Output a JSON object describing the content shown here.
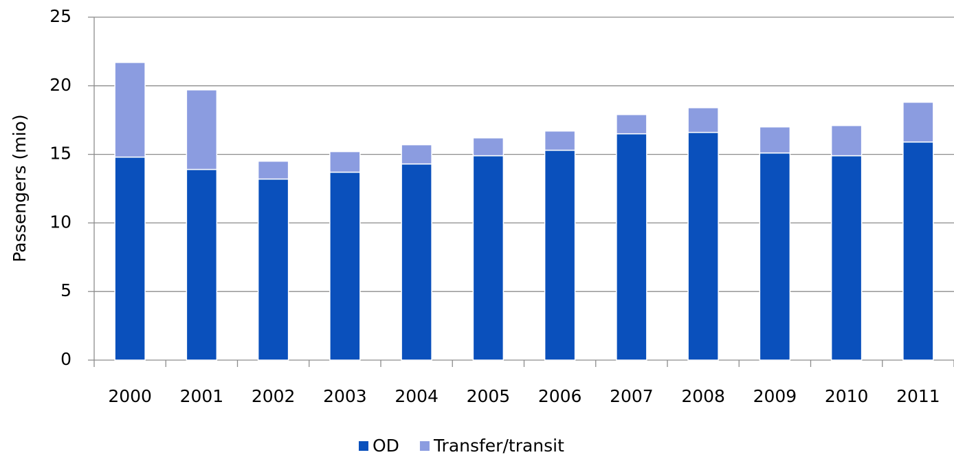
{
  "chart_data": {
    "type": "stacked_bar",
    "y_label": "Passengers (mio)",
    "categories": [
      "2000",
      "2001",
      "2002",
      "2003",
      "2004",
      "2005",
      "2006",
      "2007",
      "2008",
      "2009",
      "2010",
      "2011"
    ],
    "series": [
      {
        "name": "OD",
        "color": "#0a50bc",
        "values": [
          14.8,
          13.9,
          13.2,
          13.7,
          14.3,
          14.9,
          15.3,
          16.5,
          16.6,
          15.1,
          14.9,
          15.9
        ]
      },
      {
        "name": "Transfer/transit",
        "color": "#8b9ce0",
        "values": [
          6.9,
          5.8,
          1.3,
          1.5,
          1.4,
          1.3,
          1.4,
          1.4,
          1.8,
          1.9,
          2.2,
          2.9
        ]
      }
    ],
    "ylim": [
      0,
      25
    ],
    "yticks": [
      0,
      5,
      10,
      15,
      20,
      25
    ],
    "grid": true,
    "legend": "bottom"
  }
}
